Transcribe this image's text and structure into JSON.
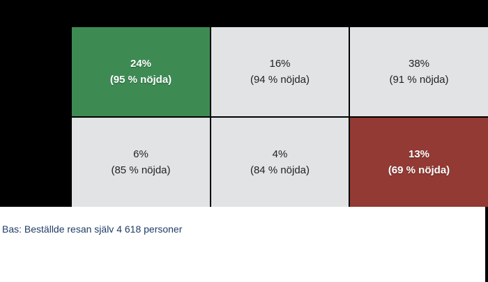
{
  "chart_data": {
    "type": "table",
    "cells": [
      {
        "share": "24%",
        "satisfaction": "(95 % nöjda)",
        "share_value": 24,
        "satisfied_value": 95,
        "fill": "#3d8b53",
        "highlight": true
      },
      {
        "share": "16%",
        "satisfaction": "(94 % nöjda)",
        "share_value": 16,
        "satisfied_value": 94,
        "fill": "#e1e3e5",
        "highlight": false
      },
      {
        "share": "38%",
        "satisfaction": "(91 % nöjda)",
        "share_value": 38,
        "satisfied_value": 91,
        "fill": "#e1e3e5",
        "highlight": false
      },
      {
        "share": "6%",
        "satisfaction": "(85 % nöjda)",
        "share_value": 6,
        "satisfied_value": 85,
        "fill": "#e1e3e5",
        "highlight": false
      },
      {
        "share": "4%",
        "satisfaction": "(84 % nöjda)",
        "share_value": 4,
        "satisfied_value": 84,
        "fill": "#e1e3e5",
        "highlight": false
      },
      {
        "share": "13%",
        "satisfaction": "(69 % nöjda)",
        "share_value": 13,
        "satisfied_value": 69,
        "fill": "#923a33",
        "highlight": true
      }
    ],
    "rows": 2,
    "columns": 3
  },
  "footnote": "Bas: Beställde resan själv 4 618 personer",
  "colors": {
    "positive": "#3d8b53",
    "negative": "#923a33",
    "neutral": "#e1e3e5",
    "background_band": "#000000",
    "footnote_text": "#1f3c66"
  }
}
